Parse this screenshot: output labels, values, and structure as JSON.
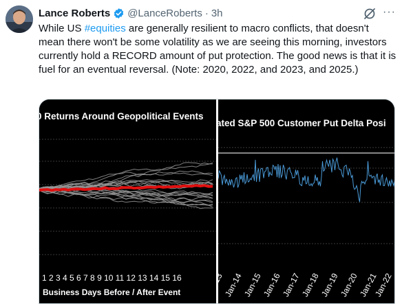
{
  "tweet": {
    "author_name": "Lance Roberts",
    "handle": "@LanceRoberts",
    "separator": "·",
    "time": "3h",
    "more_label": "···",
    "text_before_hashtag": "While US ",
    "hashtag": "#equities",
    "text_after_hashtag": " are generally resilient to macro conflicts, that doesn't mean there won't be some volatility as we are seeing this morning, investors currently hold a RECORD amount of put protection. The good news is that it is fuel for an eventual reversal. (Note: 2020, 2022, and 2023, and 2025.)"
  },
  "icons": {
    "verified": "verified-badge-icon",
    "grok": "grok-icon",
    "more": "more-options-icon"
  },
  "colors": {
    "accent": "#1d9bf0",
    "left_highlight_series": "#e01010",
    "right_series": "#4a9ad8"
  },
  "media": {
    "left_chart": {
      "title": "0 Returns Around Geopolitical Events",
      "x_ticks": "1 2 3 4 5 6 7 8 9 10 11 12 13 14 15 16",
      "x_label": "Business Days Before / After Event"
    },
    "right_chart": {
      "title": "ated S&P 500 Customer Put Delta Posi",
      "x_ticks": [
        "-13",
        "Jan-14",
        "Jan-15",
        "Jan-16",
        "Jan-17",
        "Jan-18",
        "Jan-19",
        "Jan-20",
        "Jan-21",
        "Jan-22"
      ]
    }
  },
  "chart_data": [
    {
      "type": "line",
      "title": "0 Returns Around Geopolitical Events",
      "xlabel": "Business Days Before / After Event",
      "x": [
        1,
        2,
        3,
        4,
        5,
        6,
        7,
        8,
        9,
        10,
        11,
        12,
        13,
        14,
        15,
        16
      ],
      "grid": true,
      "series_note": "many grey event lines with a red average line near zero"
    },
    {
      "type": "line",
      "title": "ated S&P 500 Customer Put Delta Posi",
      "categories": [
        "-13",
        "Jan-14",
        "Jan-15",
        "Jan-16",
        "Jan-17",
        "Jan-18",
        "Jan-19",
        "Jan-20",
        "Jan-21",
        "Jan-22"
      ],
      "grid": true
    }
  ]
}
